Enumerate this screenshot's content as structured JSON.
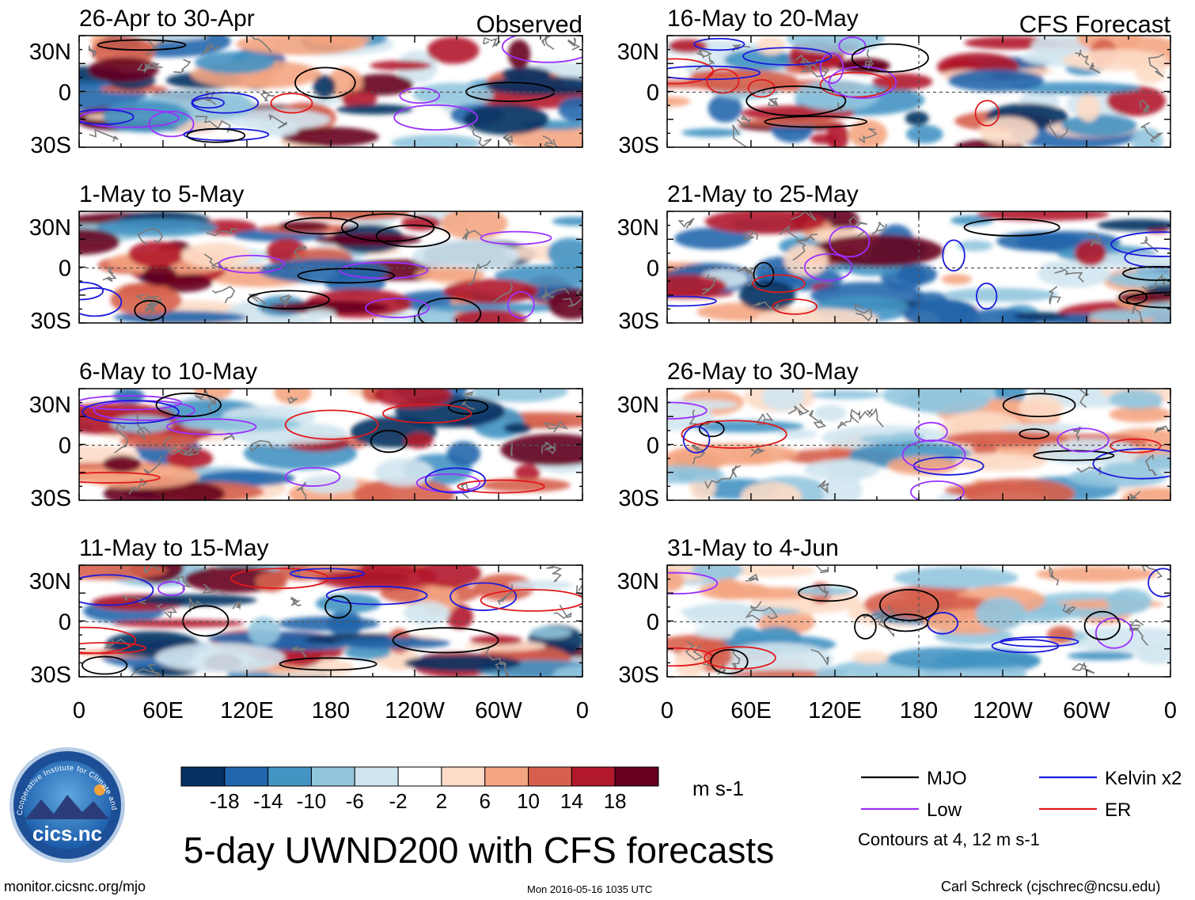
{
  "chart_data": {
    "type": "heatmap",
    "title": "5-day UWND200 with CFS forecasts",
    "column_headers": [
      "Observed",
      "CFS Forecast"
    ],
    "panels": [
      {
        "period": "26-Apr to 30-Apr",
        "source": "Observed"
      },
      {
        "period": "1-May to 5-May",
        "source": "Observed"
      },
      {
        "period": "6-May to 10-May",
        "source": "Observed"
      },
      {
        "period": "11-May to 15-May",
        "source": "Observed"
      },
      {
        "period": "16-May to 20-May",
        "source": "CFS Forecast"
      },
      {
        "period": "21-May to 25-May",
        "source": "CFS Forecast"
      },
      {
        "period": "26-May to 30-May",
        "source": "CFS Forecast"
      },
      {
        "period": "31-May to 4-Jun",
        "source": "CFS Forecast"
      }
    ],
    "y_ticks": [
      "30N",
      "0",
      "30S"
    ],
    "x_ticks": [
      "0",
      "60E",
      "120E",
      "180",
      "120W",
      "60W",
      "0"
    ],
    "colorbar": {
      "levels": [
        "-18",
        "-14",
        "-10",
        "-6",
        "-2",
        "2",
        "6",
        "10",
        "14",
        "18"
      ],
      "colors": [
        "#053061",
        "#2166ac",
        "#4393c3",
        "#92c5de",
        "#d1e5f0",
        "#ffffff",
        "#fddbc7",
        "#f4a582",
        "#d6604d",
        "#b2182b",
        "#67001f"
      ],
      "units": "m s-1"
    },
    "legend": [
      {
        "label": "MJO",
        "color": "#000000"
      },
      {
        "label": "Kelvin x2",
        "color": "#1a1adc"
      },
      {
        "label": "Low",
        "color": "#9b30ff"
      },
      {
        "label": "ER",
        "color": "#e0191c"
      }
    ],
    "contour_note": "Contours at 4, 12 m s-1"
  },
  "footer": {
    "logo_text": "cics.nc",
    "logo_ring_text": "Cooperative Institute for Climate and Satellites",
    "website": "monitor.cicsnc.org/mjo",
    "timestamp": "Mon 2016-05-16 1035 UTC",
    "author": "Carl Schreck (cjschrec@ncsu.edu)"
  }
}
